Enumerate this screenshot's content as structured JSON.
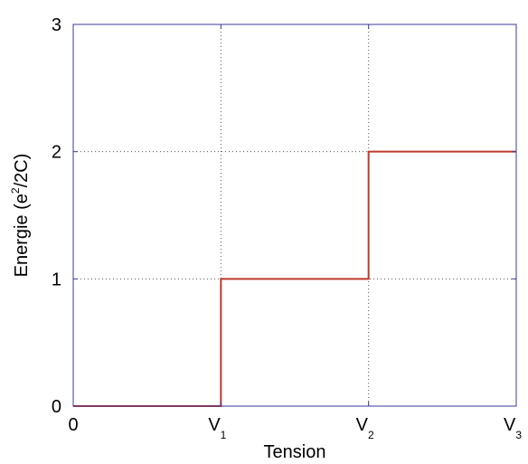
{
  "chart_data": {
    "type": "line",
    "xlabel": "Tension",
    "ylabel": {
      "prefix": "Energie (e",
      "superscript": "2",
      "suffix": "/2C)"
    },
    "xlim": [
      0,
      3
    ],
    "ylim": [
      0,
      3
    ],
    "x_ticks": [
      {
        "value": 0,
        "label": "0",
        "subscript": ""
      },
      {
        "value": 1,
        "label": "V",
        "subscript": "1"
      },
      {
        "value": 2,
        "label": "V",
        "subscript": "2"
      },
      {
        "value": 3,
        "label": "V",
        "subscript": "3"
      }
    ],
    "y_ticks": [
      {
        "value": 0,
        "label": "0"
      },
      {
        "value": 1,
        "label": "1"
      },
      {
        "value": 2,
        "label": "2"
      },
      {
        "value": 3,
        "label": "3"
      }
    ],
    "grid": true,
    "series": [
      {
        "style": "step",
        "color": "#c0392b",
        "points": [
          [
            0,
            0
          ],
          [
            1,
            0
          ],
          [
            1,
            1
          ],
          [
            2,
            1
          ],
          [
            2,
            2
          ],
          [
            3,
            2
          ]
        ]
      }
    ],
    "frame_color": "#3b3b9a",
    "grid_color": "#555555"
  }
}
